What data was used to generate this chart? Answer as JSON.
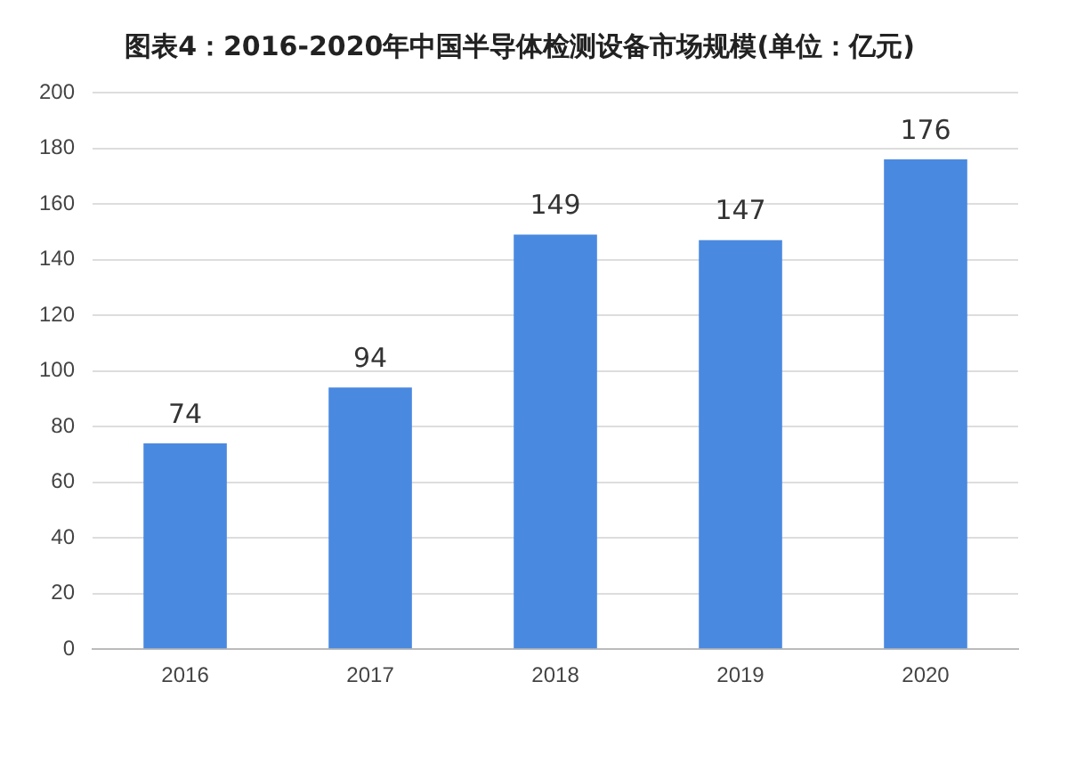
{
  "chart_data": {
    "type": "bar",
    "title": "图表4：2016-2020年中国半导体检测设备市场规模(单位：亿元)",
    "categories": [
      "2016",
      "2017",
      "2018",
      "2019",
      "2020"
    ],
    "values": [
      74,
      94,
      149,
      147,
      176
    ],
    "color": "#4a89e0",
    "ylim": [
      0,
      200
    ],
    "yticks": [
      0,
      20,
      40,
      60,
      80,
      100,
      120,
      140,
      160,
      180,
      200
    ],
    "grid": "y",
    "data_labels": true,
    "legend": false
  }
}
